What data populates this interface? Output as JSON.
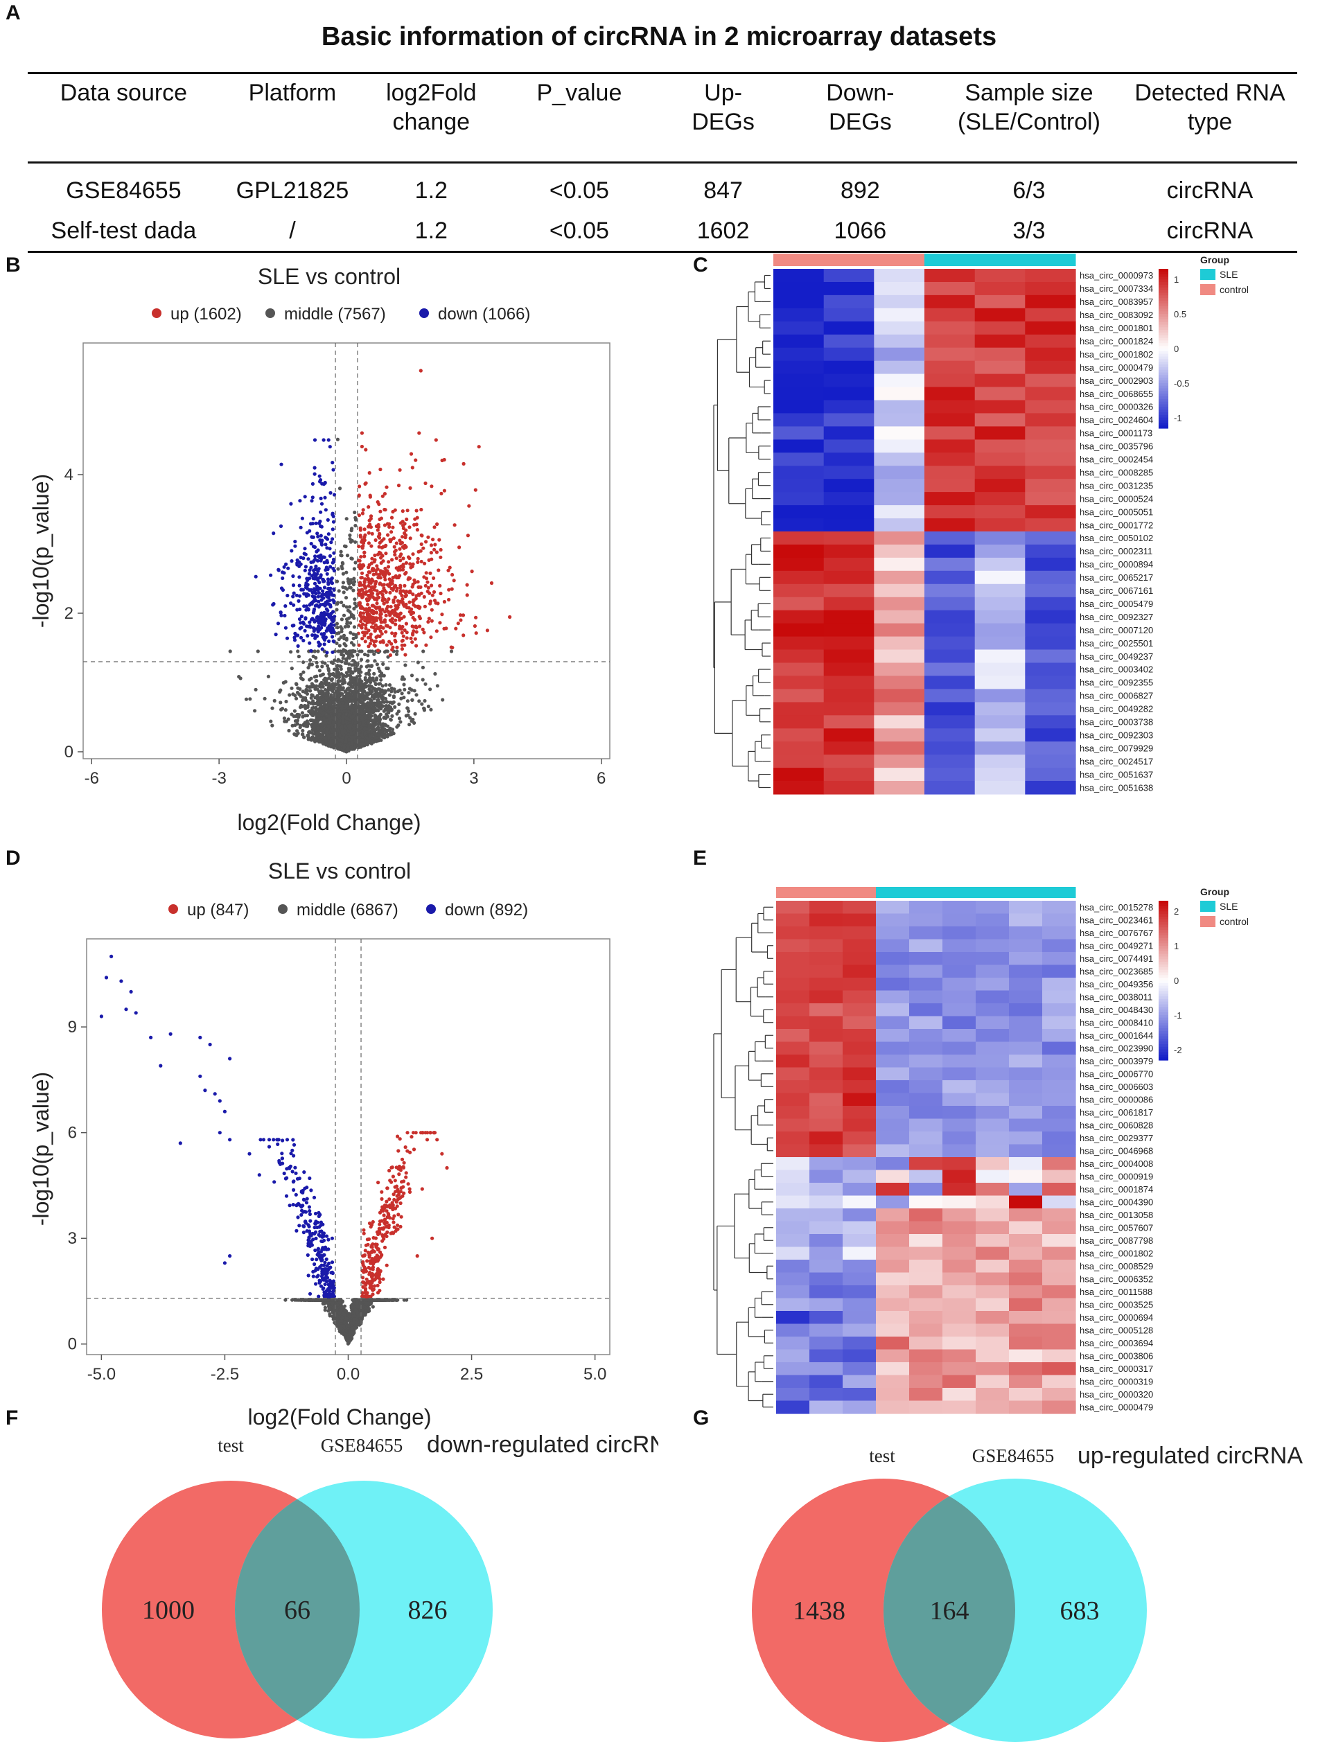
{
  "panels": {
    "A": "A",
    "B": "B",
    "C": "C",
    "D": "D",
    "E": "E",
    "F": "F",
    "G": "G"
  },
  "table": {
    "title": "Basic information of circRNA in 2 microarray datasets",
    "headers": [
      "Data source",
      "Platform",
      "log2Fold change",
      "P_value",
      "Up-DEGs",
      "Down-DEGs",
      "Sample size (SLE/Control)",
      "Detected RNA type"
    ],
    "rows": [
      [
        "GSE84655",
        "GPL21825",
        "1.2",
        "<0.05",
        "847",
        "892",
        "6/3",
        "circRNA"
      ],
      [
        "Self-test dada",
        "/",
        "1.2",
        "<0.05",
        "1602",
        "1066",
        "3/3",
        "circRNA"
      ]
    ]
  },
  "chart_data": [
    {
      "id": "B",
      "type": "scatter",
      "title": "SLE vs control",
      "xlabel": "log2(Fold Change)",
      "ylabel": "-log10(p_value)",
      "xlim": [
        -6.2,
        6.2
      ],
      "ylim": [
        -0.1,
        5.9
      ],
      "xticks": [
        -6,
        -3,
        0,
        3,
        6
      ],
      "yticks": [
        0,
        2,
        4
      ],
      "thresholds": {
        "fc": 0.26,
        "p": 1.3
      },
      "legend": [
        {
          "label": "up (1602)",
          "color": "#c8302c"
        },
        {
          "label": "middle (7567)",
          "color": "#555555"
        },
        {
          "label": "down (1066)",
          "color": "#1a1aaa"
        }
      ],
      "series": [
        {
          "name": "up",
          "count": 1602,
          "color": "#c8302c"
        },
        {
          "name": "middle",
          "count": 7567,
          "color": "#555555"
        },
        {
          "name": "down",
          "count": 1066,
          "color": "#1a1aaa"
        }
      ]
    },
    {
      "id": "D",
      "type": "scatter",
      "title": "SLE vs control",
      "xlabel": "log2(Fold Change)",
      "ylabel": "-log10(p_value)",
      "xlim": [
        -5.3,
        5.3
      ],
      "ylim": [
        -0.3,
        11.5
      ],
      "xticks": [
        -5.0,
        -2.5,
        0.0,
        2.5,
        5.0
      ],
      "xtick_labels": [
        "-5.0",
        "-2.5",
        "0.0",
        "2.5",
        "5.0"
      ],
      "yticks": [
        0,
        3,
        6,
        9
      ],
      "thresholds": {
        "fc": 0.26,
        "p": 1.3
      },
      "legend": [
        {
          "label": "up (847)",
          "color": "#c8302c"
        },
        {
          "label": "middle (6867)",
          "color": "#555555"
        },
        {
          "label": "down (892)",
          "color": "#1a1aaa"
        }
      ],
      "series": [
        {
          "name": "up",
          "count": 847,
          "color": "#c8302c"
        },
        {
          "name": "middle",
          "count": 6867,
          "color": "#555555"
        },
        {
          "name": "down",
          "count": 892,
          "color": "#1a1aaa"
        }
      ]
    },
    {
      "id": "C",
      "type": "heatmap",
      "legend_title": "Group",
      "groups": [
        {
          "name": "SLE",
          "color": "#1ecbd6"
        },
        {
          "name": "control",
          "color": "#f08a82"
        }
      ],
      "column_groups": [
        "control",
        "control",
        "control",
        "SLE",
        "SLE",
        "SLE"
      ],
      "scale_ticks": [
        "1",
        "0.5",
        "0",
        "-0.5",
        "-1"
      ],
      "rows": [
        "hsa_circ_0000973",
        "hsa_circ_0007334",
        "hsa_circ_0083957",
        "hsa_circ_0083092",
        "hsa_circ_0001801",
        "hsa_circ_0001824",
        "hsa_circ_0001802",
        "hsa_circ_0000479",
        "hsa_circ_0002903",
        "hsa_circ_0068655",
        "hsa_circ_0000326",
        "hsa_circ_0024604",
        "hsa_circ_0001173",
        "hsa_circ_0035796",
        "hsa_circ_0002454",
        "hsa_circ_0008285",
        "hsa_circ_0031235",
        "hsa_circ_0000524",
        "hsa_circ_0005051",
        "hsa_circ_0001772",
        "hsa_circ_0050102",
        "hsa_circ_0002311",
        "hsa_circ_0000894",
        "hsa_circ_0065217",
        "hsa_circ_0067161",
        "hsa_circ_0005479",
        "hsa_circ_0092327",
        "hsa_circ_0007120",
        "hsa_circ_0025501",
        "hsa_circ_0049237",
        "hsa_circ_0003402",
        "hsa_circ_0092355",
        "hsa_circ_0006827",
        "hsa_circ_0049282",
        "hsa_circ_0003738",
        "hsa_circ_0092303",
        "hsa_circ_0079929",
        "hsa_circ_0024517",
        "hsa_circ_0051637",
        "hsa_circ_0051638"
      ],
      "down_rows": 20
    },
    {
      "id": "E",
      "type": "heatmap",
      "legend_title": "Group",
      "groups": [
        {
          "name": "SLE",
          "color": "#1ecbd6"
        },
        {
          "name": "control",
          "color": "#f08a82"
        }
      ],
      "column_groups": [
        "control",
        "control",
        "control",
        "SLE",
        "SLE",
        "SLE",
        "SLE",
        "SLE",
        "SLE"
      ],
      "scale_ticks": [
        "2",
        "1",
        "0",
        "-1",
        "-2"
      ],
      "rows": [
        "hsa_circ_0015278",
        "hsa_circ_0023461",
        "hsa_circ_0076767",
        "hsa_circ_0049271",
        "hsa_circ_0074491",
        "hsa_circ_0023685",
        "hsa_circ_0049356",
        "hsa_circ_0038011",
        "hsa_circ_0048430",
        "hsa_circ_0008410",
        "hsa_circ_0001644",
        "hsa_circ_0023990",
        "hsa_circ_0003979",
        "hsa_circ_0006770",
        "hsa_circ_0006603",
        "hsa_circ_0000086",
        "hsa_circ_0061817",
        "hsa_circ_0060828",
        "hsa_circ_0029377",
        "hsa_circ_0046968",
        "hsa_circ_0004008",
        "hsa_circ_0000919",
        "hsa_circ_0001874",
        "hsa_circ_0004390",
        "hsa_circ_0013058",
        "hsa_circ_0057607",
        "hsa_circ_0087798",
        "hsa_circ_0001802",
        "hsa_circ_0008529",
        "hsa_circ_0006352",
        "hsa_circ_0011588",
        "hsa_circ_0003525",
        "hsa_circ_0000694",
        "hsa_circ_0005128",
        "hsa_circ_0003694",
        "hsa_circ_0003806",
        "hsa_circ_0000317",
        "hsa_circ_0000319",
        "hsa_circ_0000320",
        "hsa_circ_0000479"
      ],
      "down_rows": 20
    }
  ],
  "venn_f": {
    "label_a": "test",
    "label_b": "GSE84655",
    "title": "down-regulated circRNA",
    "only_a": "1000",
    "both": "66",
    "only_b": "826"
  },
  "venn_g": {
    "label_a": "test",
    "label_b": "GSE84655",
    "title": "up-regulated circRNA",
    "only_a": "1438",
    "both": "164",
    "only_b": "683"
  },
  "colors": {
    "venn_a": "#f26a66",
    "venn_b": "#6ff1f6",
    "venn_overlap": "#5f9f9c"
  }
}
